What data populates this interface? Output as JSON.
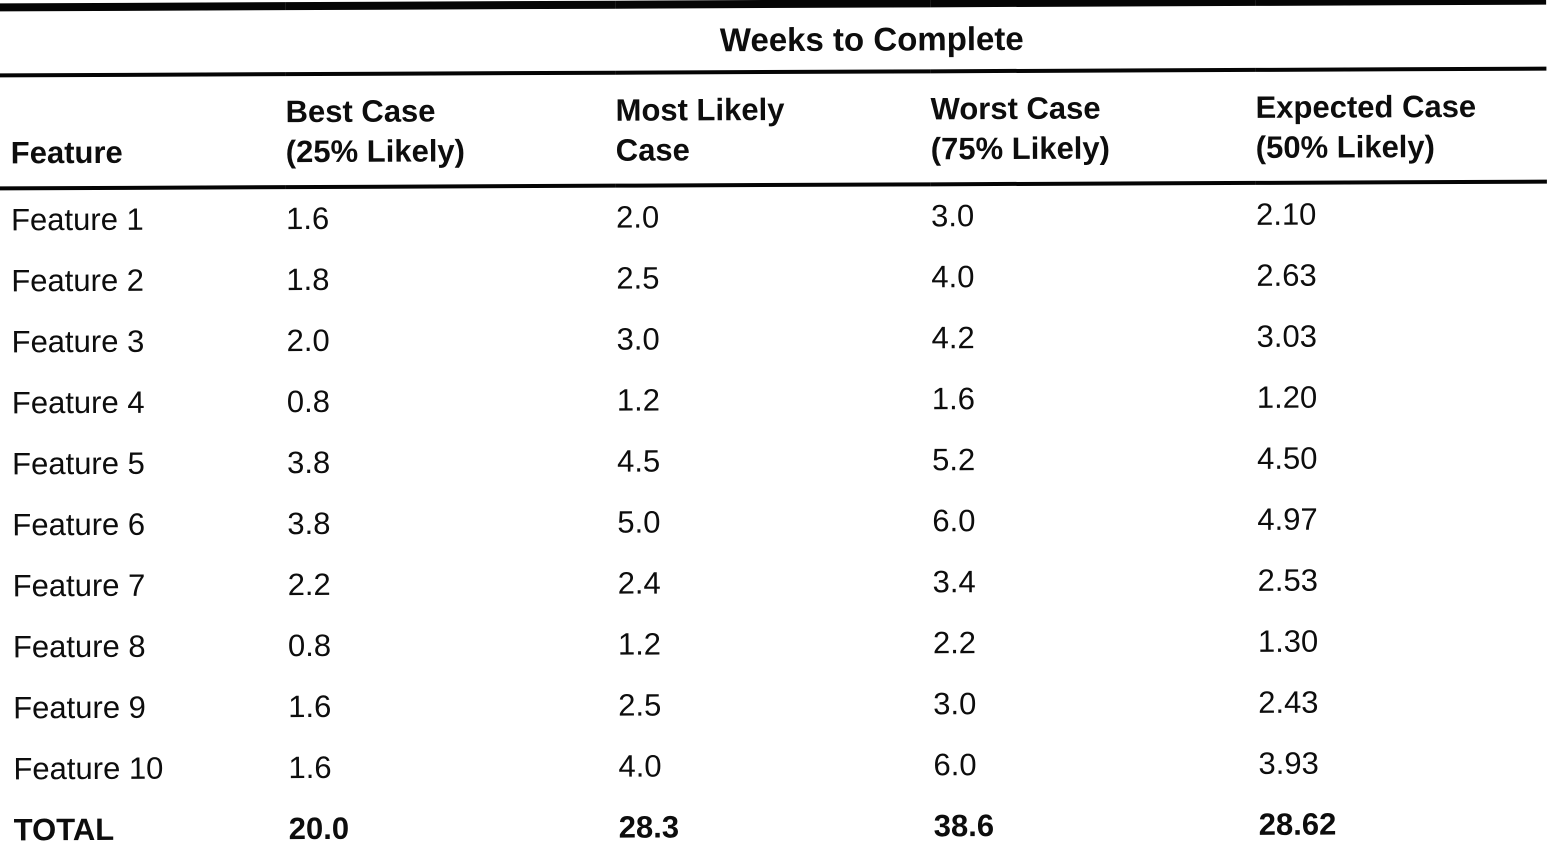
{
  "page": {
    "background": "#ffffff",
    "ink": "#0d0d0d"
  },
  "table": {
    "title": "Weeks to Complete",
    "columns": {
      "feature": "Feature",
      "best": {
        "line1": "Best Case",
        "line2": "(25% Likely)"
      },
      "likely": {
        "line1": "Most Likely",
        "line2": "Case"
      },
      "worst": {
        "line1": "Worst Case",
        "line2": "(75% Likely)"
      },
      "expected": {
        "line1": "Expected Case",
        "line2": "(50% Likely)"
      }
    },
    "rows": [
      {
        "feature": "Feature 1",
        "best": "1.6",
        "likely": "2.0",
        "worst": "3.0",
        "expected": "2.10"
      },
      {
        "feature": "Feature 2",
        "best": "1.8",
        "likely": "2.5",
        "worst": "4.0",
        "expected": "2.63"
      },
      {
        "feature": "Feature 3",
        "best": "2.0",
        "likely": "3.0",
        "worst": "4.2",
        "expected": "3.03"
      },
      {
        "feature": "Feature 4",
        "best": "0.8",
        "likely": "1.2",
        "worst": "1.6",
        "expected": "1.20"
      },
      {
        "feature": "Feature 5",
        "best": "3.8",
        "likely": "4.5",
        "worst": "5.2",
        "expected": "4.50"
      },
      {
        "feature": "Feature 6",
        "best": "3.8",
        "likely": "5.0",
        "worst": "6.0",
        "expected": "4.97"
      },
      {
        "feature": "Feature 7",
        "best": "2.2",
        "likely": "2.4",
        "worst": "3.4",
        "expected": "2.53"
      },
      {
        "feature": "Feature 8",
        "best": "0.8",
        "likely": "1.2",
        "worst": "2.2",
        "expected": "1.30"
      },
      {
        "feature": "Feature 9",
        "best": "1.6",
        "likely": "2.5",
        "worst": "3.0",
        "expected": "2.43"
      },
      {
        "feature": "Feature 10",
        "best": "1.6",
        "likely": "4.0",
        "worst": "6.0",
        "expected": "3.93"
      }
    ],
    "total_row": {
      "feature": "TOTAL",
      "best": "20.0",
      "likely": "28.3",
      "worst": "38.6",
      "expected": "28.62"
    }
  }
}
